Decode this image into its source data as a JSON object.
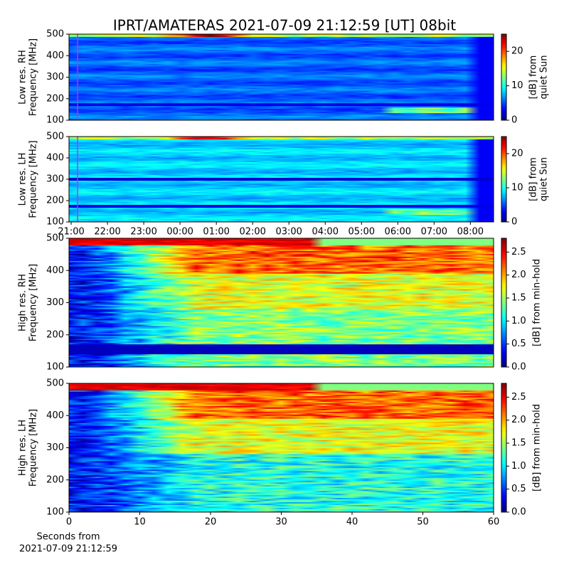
{
  "chart_data": [
    {
      "type": "heatmap",
      "title": "IPRT/AMATERAS 2021-07-09 21:12:59 [UT]   08bit",
      "ylabel": [
        "Low res. RH",
        "Frequency [MHz]"
      ],
      "ylim": [
        100,
        500
      ],
      "yticks": [
        100,
        200,
        300,
        400,
        500
      ],
      "xlim": [
        20.94,
        32.64
      ],
      "clim": [
        0,
        25
      ],
      "cticks": [
        0,
        10,
        20
      ],
      "clabel": [
        "[dB] from",
        "quiet Sun"
      ],
      "colormap": "jet"
    },
    {
      "type": "heatmap",
      "ylabel": [
        "Low res. LH",
        "Frequency [MHz]"
      ],
      "ylim": [
        100,
        500
      ],
      "yticks": [
        100,
        200,
        300,
        400,
        500
      ],
      "xlim": [
        20.94,
        32.64
      ],
      "xticks": [
        {
          "value": 21,
          "label": "21:00"
        },
        {
          "value": 22,
          "label": "22:00"
        },
        {
          "value": 23,
          "label": "23:00"
        },
        {
          "value": 24,
          "label": "00:00"
        },
        {
          "value": 25,
          "label": "01:00"
        },
        {
          "value": 26,
          "label": "02:00"
        },
        {
          "value": 27,
          "label": "03:00"
        },
        {
          "value": 28,
          "label": "04:00"
        },
        {
          "value": 29,
          "label": "05:00"
        },
        {
          "value": 30,
          "label": "06:00"
        },
        {
          "value": 31,
          "label": "07:00"
        },
        {
          "value": 32,
          "label": "08:00"
        }
      ],
      "clim": [
        0,
        25
      ],
      "cticks": [
        0,
        10,
        20
      ],
      "clabel": [
        "[dB] from",
        "quiet Sun"
      ],
      "colormap": "jet"
    },
    {
      "type": "heatmap",
      "ylabel": [
        "High res. RH",
        "Frequency [MHz]"
      ],
      "ylim": [
        100,
        500
      ],
      "yticks": [
        100,
        200,
        300,
        400,
        500
      ],
      "xlim": [
        0,
        60
      ],
      "clim": [
        0,
        2.8
      ],
      "cticks": [
        {
          "value": 0,
          "label": "0.0"
        },
        {
          "value": 0.5,
          "label": "0.5"
        },
        {
          "value": 1,
          "label": "1.0"
        },
        {
          "value": 1.5,
          "label": "1.5"
        },
        {
          "value": 2,
          "label": "2.0"
        },
        {
          "value": 2.5,
          "label": "2.5"
        }
      ],
      "clabel": [
        "[dB] from min-hold"
      ],
      "colormap": "jet"
    },
    {
      "type": "heatmap",
      "ylabel": [
        "High res. LH",
        "Frequency [MHz]"
      ],
      "xlabel": [
        "Seconds from",
        "2021-07-09 21:12:59"
      ],
      "ylim": [
        100,
        500
      ],
      "yticks": [
        100,
        200,
        300,
        400,
        500
      ],
      "xlim": [
        0,
        60
      ],
      "xticks": [
        0,
        10,
        20,
        30,
        40,
        50,
        60
      ],
      "clim": [
        0,
        2.8
      ],
      "cticks": [
        {
          "value": 0,
          "label": "0.0"
        },
        {
          "value": 0.5,
          "label": "0.5"
        },
        {
          "value": 1,
          "label": "1.0"
        },
        {
          "value": 1.5,
          "label": "1.5"
        },
        {
          "value": 2,
          "label": "2.0"
        },
        {
          "value": 2.5,
          "label": "2.5"
        }
      ],
      "clabel": [
        "[dB] from min-hold"
      ],
      "colormap": "jet"
    }
  ]
}
